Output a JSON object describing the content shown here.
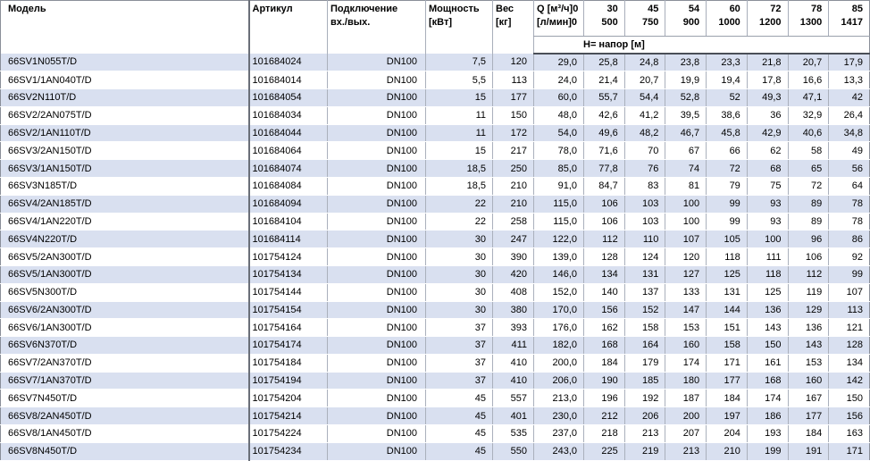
{
  "header": {
    "model": "Модель",
    "article": "Артикул",
    "connection_l1": "Подключение",
    "connection_l2": "вх./вых.",
    "power_l1": "Мощность",
    "power_l2": "[кВт]",
    "weight_l1": "Вес",
    "weight_l2": "[кг]",
    "q_l1_label": "Q [м³/ч]",
    "q_l1_zero": "0",
    "q_l2_label": "[л/мин]",
    "q_l2_zero": "0",
    "head_span_label": "Н= напор [м]",
    "flow_columns": [
      {
        "m3h": "30",
        "lmin": "500"
      },
      {
        "m3h": "45",
        "lmin": "750"
      },
      {
        "m3h": "54",
        "lmin": "900"
      },
      {
        "m3h": "60",
        "lmin": "1000"
      },
      {
        "m3h": "72",
        "lmin": "1200"
      },
      {
        "m3h": "78",
        "lmin": "1300"
      },
      {
        "m3h": "85",
        "lmin": "1417"
      }
    ]
  },
  "colors": {
    "stripe": "#d9e0f0",
    "header_rule": "#4a4f57",
    "grid_line": "#aab0bc"
  },
  "rows": [
    {
      "model": "66SV1N055T/D",
      "article": "101684024",
      "connection": "DN100",
      "power": "7,5",
      "weight": "120",
      "q0": "29,0",
      "heads": [
        "25,8",
        "24,8",
        "23,8",
        "23,3",
        "21,8",
        "20,7",
        "17,9"
      ]
    },
    {
      "model": "66SV1/1AN040T/D",
      "article": "101684014",
      "connection": "DN100",
      "power": "5,5",
      "weight": "113",
      "q0": "24,0",
      "heads": [
        "21,4",
        "20,7",
        "19,9",
        "19,4",
        "17,8",
        "16,6",
        "13,3"
      ]
    },
    {
      "model": "66SV2N110T/D",
      "article": "101684054",
      "connection": "DN100",
      "power": "15",
      "weight": "177",
      "q0": "60,0",
      "heads": [
        "55,7",
        "54,4",
        "52,8",
        "52",
        "49,3",
        "47,1",
        "42"
      ]
    },
    {
      "model": "66SV2/2AN075T/D",
      "article": "101684034",
      "connection": "DN100",
      "power": "11",
      "weight": "150",
      "q0": "48,0",
      "heads": [
        "42,6",
        "41,2",
        "39,5",
        "38,6",
        "36",
        "32,9",
        "26,4"
      ]
    },
    {
      "model": "66SV2/1AN110T/D",
      "article": "101684044",
      "connection": "DN100",
      "power": "11",
      "weight": "172",
      "q0": "54,0",
      "heads": [
        "49,6",
        "48,2",
        "46,7",
        "45,8",
        "42,9",
        "40,6",
        "34,8"
      ]
    },
    {
      "model": "66SV3/2AN150T/D",
      "article": "101684064",
      "connection": "DN100",
      "power": "15",
      "weight": "217",
      "q0": "78,0",
      "heads": [
        "71,6",
        "70",
        "67",
        "66",
        "62",
        "58",
        "49"
      ]
    },
    {
      "model": "66SV3/1AN150T/D",
      "article": "101684074",
      "connection": "DN100",
      "power": "18,5",
      "weight": "250",
      "q0": "85,0",
      "heads": [
        "77,8",
        "76",
        "74",
        "72",
        "68",
        "65",
        "56"
      ]
    },
    {
      "model": "66SV3N185T/D",
      "article": "101684084",
      "connection": "DN100",
      "power": "18,5",
      "weight": "210",
      "q0": "91,0",
      "heads": [
        "84,7",
        "83",
        "81",
        "79",
        "75",
        "72",
        "64"
      ]
    },
    {
      "model": "66SV4/2AN185T/D",
      "article": "101684094",
      "connection": "DN100",
      "power": "22",
      "weight": "210",
      "q0": "115,0",
      "heads": [
        "106",
        "103",
        "100",
        "99",
        "93",
        "89",
        "78"
      ]
    },
    {
      "model": "66SV4/1AN220T/D",
      "article": "101684104",
      "connection": "DN100",
      "power": "22",
      "weight": "258",
      "q0": "115,0",
      "heads": [
        "106",
        "103",
        "100",
        "99",
        "93",
        "89",
        "78"
      ]
    },
    {
      "model": "66SV4N220T/D",
      "article": "101684114",
      "connection": "DN100",
      "power": "30",
      "weight": "247",
      "q0": "122,0",
      "heads": [
        "112",
        "110",
        "107",
        "105",
        "100",
        "96",
        "86"
      ]
    },
    {
      "model": "66SV5/2AN300T/D",
      "article": "101754124",
      "connection": "DN100",
      "power": "30",
      "weight": "390",
      "q0": "139,0",
      "heads": [
        "128",
        "124",
        "120",
        "118",
        "111",
        "106",
        "92"
      ]
    },
    {
      "model": "66SV5/1AN300T/D",
      "article": "101754134",
      "connection": "DN100",
      "power": "30",
      "weight": "420",
      "q0": "146,0",
      "heads": [
        "134",
        "131",
        "127",
        "125",
        "118",
        "112",
        "99"
      ]
    },
    {
      "model": "66SV5N300T/D",
      "article": "101754144",
      "connection": "DN100",
      "power": "30",
      "weight": "408",
      "q0": "152,0",
      "heads": [
        "140",
        "137",
        "133",
        "131",
        "125",
        "119",
        "107"
      ]
    },
    {
      "model": "66SV6/2AN300T/D",
      "article": "101754154",
      "connection": "DN100",
      "power": "30",
      "weight": "380",
      "q0": "170,0",
      "heads": [
        "156",
        "152",
        "147",
        "144",
        "136",
        "129",
        "113"
      ]
    },
    {
      "model": "66SV6/1AN300T/D",
      "article": "101754164",
      "connection": "DN100",
      "power": "37",
      "weight": "393",
      "q0": "176,0",
      "heads": [
        "162",
        "158",
        "153",
        "151",
        "143",
        "136",
        "121"
      ]
    },
    {
      "model": "66SV6N370T/D",
      "article": "101754174",
      "connection": "DN100",
      "power": "37",
      "weight": "411",
      "q0": "182,0",
      "heads": [
        "168",
        "164",
        "160",
        "158",
        "150",
        "143",
        "128"
      ]
    },
    {
      "model": "66SV7/2AN370T/D",
      "article": "101754184",
      "connection": "DN100",
      "power": "37",
      "weight": "410",
      "q0": "200,0",
      "heads": [
        "184",
        "179",
        "174",
        "171",
        "161",
        "153",
        "134"
      ]
    },
    {
      "model": "66SV7/1AN370T/D",
      "article": "101754194",
      "connection": "DN100",
      "power": "37",
      "weight": "410",
      "q0": "206,0",
      "heads": [
        "190",
        "185",
        "180",
        "177",
        "168",
        "160",
        "142"
      ]
    },
    {
      "model": "66SV7N450T/D",
      "article": "101754204",
      "connection": "DN100",
      "power": "45",
      "weight": "557",
      "q0": "213,0",
      "heads": [
        "196",
        "192",
        "187",
        "184",
        "174",
        "167",
        "150"
      ]
    },
    {
      "model": "66SV8/2AN450T/D",
      "article": "101754214",
      "connection": "DN100",
      "power": "45",
      "weight": "401",
      "q0": "230,0",
      "heads": [
        "212",
        "206",
        "200",
        "197",
        "186",
        "177",
        "156"
      ]
    },
    {
      "model": "66SV8/1AN450T/D",
      "article": "101754224",
      "connection": "DN100",
      "power": "45",
      "weight": "535",
      "q0": "237,0",
      "heads": [
        "218",
        "213",
        "207",
        "204",
        "193",
        "184",
        "163"
      ]
    },
    {
      "model": "66SV8N450T/D",
      "article": "101754234",
      "connection": "DN100",
      "power": "45",
      "weight": "550",
      "q0": "243,0",
      "heads": [
        "225",
        "219",
        "213",
        "210",
        "199",
        "191",
        "171"
      ]
    }
  ]
}
